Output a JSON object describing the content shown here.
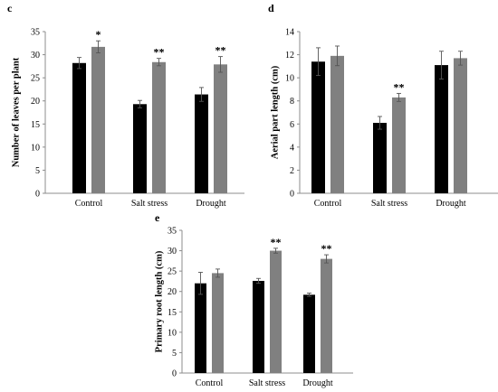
{
  "chart_data": [
    {
      "type": "bar",
      "panel": "c",
      "ylabel": "Number of leaves per plant",
      "xlabel": "",
      "ylim": [
        0,
        35
      ],
      "yticks": [
        0,
        5,
        10,
        15,
        20,
        25,
        30,
        35
      ],
      "categories": [
        "Control",
        "Salt stress",
        "Drought"
      ],
      "series": [
        {
          "values": [
            28.2,
            19.3,
            21.4
          ],
          "errors": [
            1.2,
            0.8,
            1.5
          ],
          "color": "#000000"
        },
        {
          "values": [
            31.7,
            28.4,
            27.9
          ],
          "errors": [
            1.3,
            0.8,
            1.7
          ],
          "color": "#808080"
        }
      ],
      "annotations": [
        "*",
        "**",
        "**"
      ],
      "grid": false
    },
    {
      "type": "bar",
      "panel": "d",
      "ylabel": "Aerial part length (cm)",
      "xlabel": "",
      "ylim": [
        0,
        14
      ],
      "yticks": [
        0,
        2,
        4,
        6,
        8,
        10,
        12,
        14
      ],
      "categories": [
        "Control",
        "Salt stress",
        "Drought"
      ],
      "series": [
        {
          "values": [
            11.4,
            6.1,
            11.1
          ],
          "errors": [
            1.2,
            0.55,
            1.2
          ],
          "color": "#000000"
        },
        {
          "values": [
            11.9,
            8.3,
            11.7
          ],
          "errors": [
            0.85,
            0.35,
            0.6
          ],
          "color": "#808080"
        }
      ],
      "annotations": [
        "",
        "**",
        ""
      ],
      "grid": false
    },
    {
      "type": "bar",
      "panel": "e",
      "ylabel": "Primary root length (cm)",
      "xlabel": "",
      "ylim": [
        0,
        35
      ],
      "yticks": [
        0,
        5,
        10,
        15,
        20,
        25,
        30,
        35
      ],
      "categories": [
        "Control",
        "Salt stress",
        "Drought"
      ],
      "series": [
        {
          "values": [
            22.0,
            22.6,
            19.2
          ],
          "errors": [
            2.7,
            0.6,
            0.4
          ],
          "color": "#000000"
        },
        {
          "values": [
            24.5,
            30.0,
            28.0
          ],
          "errors": [
            1.0,
            0.6,
            1.0
          ],
          "color": "#808080"
        }
      ],
      "annotations": [
        "",
        "**",
        "**"
      ],
      "grid": false
    }
  ]
}
